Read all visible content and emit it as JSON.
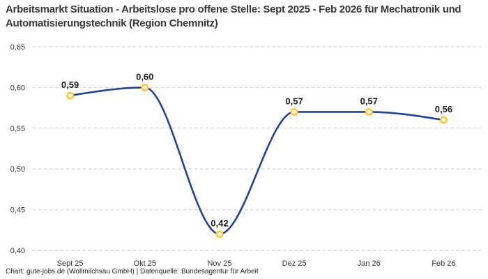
{
  "title": "Arbeitsmarkt Situation - Arbeitslose pro offene Stelle: Sept 2025 - Feb 2026 für Mechatronik und Automatisierungstechnik (Region Chemnitz)",
  "footer": "Chart: gute-jobs.de (Wollmilchsau GmbH) | Datenquelle: Bundesagentur für Arbeit",
  "chart_data": {
    "type": "line",
    "title": "Arbeitsmarkt Situation - Arbeitslose pro offene Stelle: Sept 2025 - Feb 2026 für Mechatronik und Automatisierungstechnik (Region Chemnitz)",
    "categories": [
      "Sept 25",
      "Okt 25",
      "Nov 25",
      "Dez 25",
      "Jan 26",
      "Feb 26"
    ],
    "values": [
      0.59,
      0.6,
      0.42,
      0.57,
      0.57,
      0.56
    ],
    "value_labels": [
      "0,59",
      "0,60",
      "0,42",
      "0,57",
      "0,57",
      "0,56"
    ],
    "xlabel": "",
    "ylabel": "",
    "ylim": [
      0.4,
      0.65
    ],
    "y_ticks": [
      0.65,
      0.6,
      0.55,
      0.5,
      0.45,
      0.4
    ],
    "y_tick_labels": [
      "0,65",
      "0,60",
      "0,55",
      "0,50",
      "0,45",
      "0,40"
    ],
    "grid": "horizontal-dashed",
    "legend": "none",
    "smooth": true,
    "line_color": "#23409b",
    "marker_ring_color": "#ffc632",
    "marker_fill_color": "#ffffff",
    "grid_color": "#c6c6c6",
    "tick_label_color": "#333333",
    "data_label_color": "#1a1a1a"
  }
}
